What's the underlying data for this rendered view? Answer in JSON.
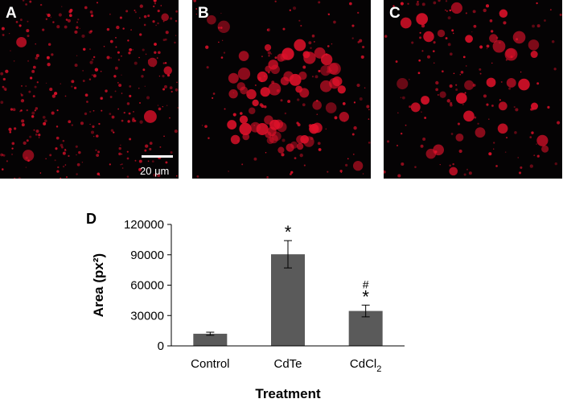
{
  "panels": [
    {
      "letter": "A",
      "name": "Control",
      "density": "sparse"
    },
    {
      "letter": "B",
      "name": "CdTe",
      "density": "dense"
    },
    {
      "letter": "C",
      "name": "CdCl2",
      "density": "medium"
    }
  ],
  "scale_bar_label": "20 μm",
  "colors": {
    "stain": "#e0112a",
    "background": "#050304",
    "bar": "#5a5a5a"
  },
  "chart_data": {
    "type": "bar",
    "panel_label": "D",
    "categories": [
      "Control",
      "CdTe",
      "CdCl2"
    ],
    "category_labels": {
      "base": [
        "Control",
        "CdTe",
        "CdCl"
      ],
      "subscript": [
        "",
        "",
        "2"
      ]
    },
    "values": [
      12000,
      90500,
      34500
    ],
    "error": [
      1500,
      13500,
      5800
    ],
    "annotations": [
      "",
      "*",
      "*"
    ],
    "annotations_secondary": [
      "",
      "",
      "#"
    ],
    "ylabel": "Area (px²)",
    "xlabel": "Treatment",
    "ylim": [
      0,
      120000
    ],
    "yticks": [
      0,
      30000,
      60000,
      90000,
      120000
    ],
    "grid": false
  }
}
